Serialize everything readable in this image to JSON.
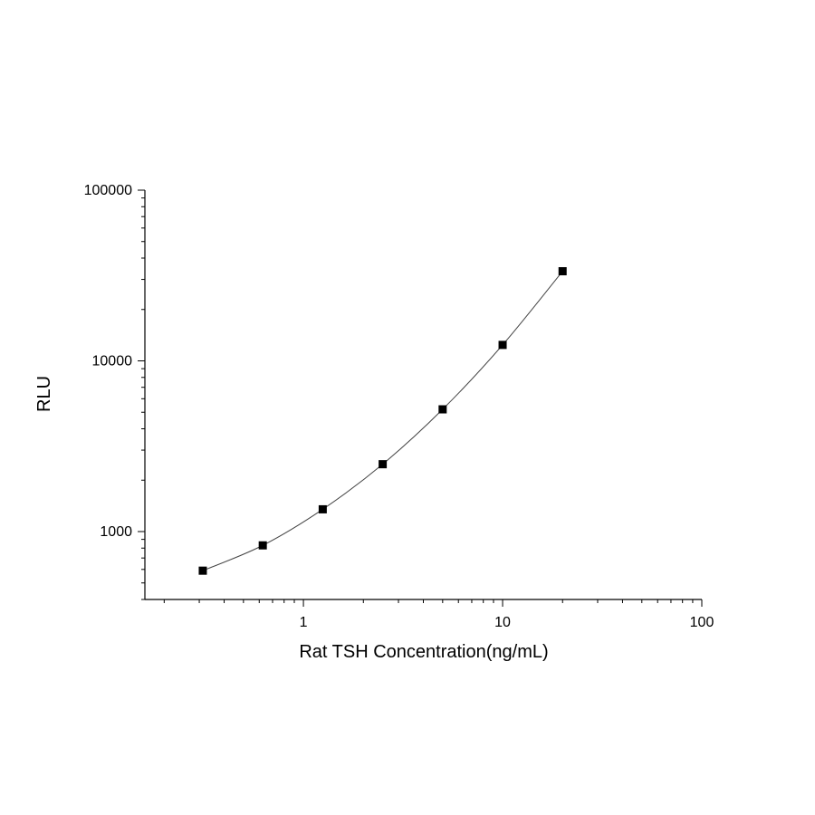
{
  "chart_data": {
    "type": "scatter",
    "title": "",
    "xlabel": "Rat TSH Concentration(ng/mL)",
    "ylabel": "RLU",
    "x_scale": "log",
    "y_scale": "log",
    "xlim": [
      0.16,
      100
    ],
    "ylim": [
      400,
      100000
    ],
    "x_ticks": [
      {
        "value": 1,
        "label": "1"
      },
      {
        "value": 10,
        "label": "10"
      },
      {
        "value": 100,
        "label": "100"
      }
    ],
    "y_ticks": [
      {
        "value": 1000,
        "label": "1000"
      },
      {
        "value": 10000,
        "label": "10000"
      },
      {
        "value": 100000,
        "label": "100000"
      }
    ],
    "grid": false,
    "series": [
      {
        "marker": "square",
        "color": "#000000",
        "fit_line": true,
        "points": [
          {
            "x": 0.3125,
            "y": 590
          },
          {
            "x": 0.625,
            "y": 830
          },
          {
            "x": 1.25,
            "y": 1350
          },
          {
            "x": 2.5,
            "y": 2480
          },
          {
            "x": 5,
            "y": 5200
          },
          {
            "x": 10,
            "y": 12400
          },
          {
            "x": 20,
            "y": 33500
          }
        ]
      }
    ]
  }
}
